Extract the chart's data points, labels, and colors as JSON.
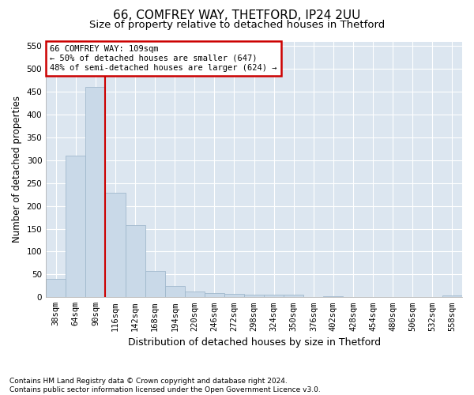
{
  "title1": "66, COMFREY WAY, THETFORD, IP24 2UU",
  "title2": "Size of property relative to detached houses in Thetford",
  "xlabel": "Distribution of detached houses by size in Thetford",
  "ylabel": "Number of detached properties",
  "footnote": "Contains HM Land Registry data © Crown copyright and database right 2024.\nContains public sector information licensed under the Open Government Licence v3.0.",
  "bin_labels": [
    "38sqm",
    "64sqm",
    "90sqm",
    "116sqm",
    "142sqm",
    "168sqm",
    "194sqm",
    "220sqm",
    "246sqm",
    "272sqm",
    "298sqm",
    "324sqm",
    "350sqm",
    "376sqm",
    "402sqm",
    "428sqm",
    "454sqm",
    "480sqm",
    "506sqm",
    "532sqm",
    "558sqm"
  ],
  "bar_values": [
    40,
    310,
    460,
    228,
    158,
    58,
    25,
    12,
    10,
    8,
    5,
    5,
    5,
    0,
    2,
    0,
    0,
    0,
    0,
    0,
    4
  ],
  "bar_color": "#c9d9e8",
  "bar_edgecolor": "#a0b8cc",
  "property_line_label": "66 COMFREY WAY: 109sqm",
  "annotation_line1": "← 50% of detached houses are smaller (647)",
  "annotation_line2": "48% of semi-detached houses are larger (624) →",
  "annotation_box_color": "#cc0000",
  "vline_color": "#cc0000",
  "ylim": [
    0,
    560
  ],
  "yticks": [
    0,
    50,
    100,
    150,
    200,
    250,
    300,
    350,
    400,
    450,
    500,
    550
  ],
  "background_color": "#ffffff",
  "plot_bg_color": "#dce6f0",
  "grid_color": "#ffffff",
  "title1_fontsize": 11,
  "title2_fontsize": 9.5,
  "xlabel_fontsize": 9,
  "ylabel_fontsize": 8.5,
  "tick_fontsize": 7.5,
  "footnote_fontsize": 6.5
}
